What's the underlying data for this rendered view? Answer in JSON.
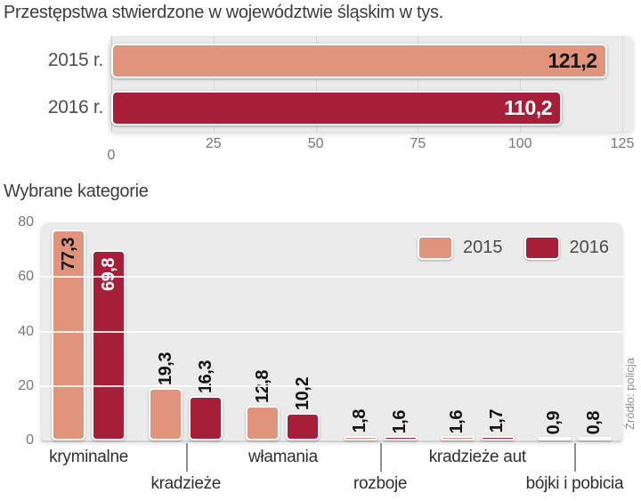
{
  "source_label": "Źródło: policja",
  "colors": {
    "y2015": "#e0947c",
    "y2016": "#a61e38",
    "panel": "#ebebeb",
    "value_on_2015": "#141414",
    "value_on_2016": "#ffffff"
  },
  "chart_data": [
    {
      "type": "bar",
      "orientation": "horizontal",
      "title": "Przestępstwa stwierdzone w województwie śląskim w tys.",
      "categories": [
        "2015 r.",
        "2016 r."
      ],
      "values": [
        121.2,
        110.2
      ],
      "value_labels": [
        "121,2",
        "110,2"
      ],
      "bar_colors": [
        "#e0947c",
        "#a61e38"
      ],
      "value_label_colors": [
        "#141414",
        "#ffffff"
      ],
      "xlim": [
        0,
        125
      ],
      "xticks": [
        0,
        25,
        50,
        75,
        100,
        125
      ],
      "xtick_labels": [
        "0",
        "25",
        "50",
        "75",
        "100",
        "125"
      ],
      "grid": "vertical"
    },
    {
      "type": "bar",
      "orientation": "vertical",
      "title": "Wybrane kategorie",
      "categories": [
        "kryminalne",
        "kradzieże",
        "włamania",
        "rozboje",
        "kradzieże aut",
        "bójki i pobicia"
      ],
      "series": [
        {
          "name": "2015",
          "color": "#e0947c",
          "values": [
            77.3,
            19.3,
            12.8,
            1.8,
            1.6,
            0.9
          ],
          "value_labels": [
            "77,3",
            "19,3",
            "12,8",
            "1,8",
            "1,6",
            "0,9"
          ]
        },
        {
          "name": "2016",
          "color": "#a61e38",
          "values": [
            69.8,
            16.3,
            10.2,
            1.6,
            1.7,
            0.8
          ],
          "value_labels": [
            "69,8",
            "16,3",
            "10,2",
            "1,6",
            "1,7",
            "0,8"
          ]
        }
      ],
      "ylim": [
        0,
        80
      ],
      "yticks": [
        0,
        20,
        40,
        60,
        80
      ],
      "ytick_labels": [
        "0",
        "20",
        "40",
        "60",
        "80"
      ],
      "grid": "horizontal",
      "legend": [
        "2015",
        "2016"
      ],
      "legend_position": "top-right"
    }
  ]
}
